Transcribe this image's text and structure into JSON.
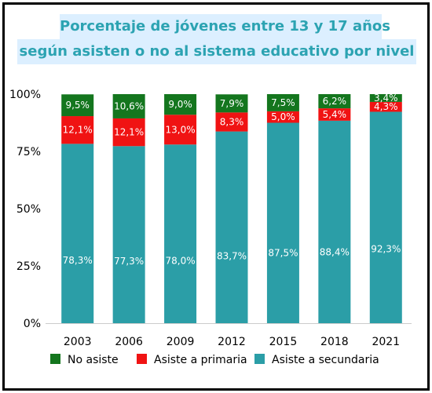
{
  "title": {
    "line1": "Porcentaje de jóvenes entre 13 y 17 años",
    "line2": "según asisten o no al  sistema educativo por nivel"
  },
  "chart_data": {
    "type": "bar",
    "stacked": true,
    "categories": [
      "2003",
      "2006",
      "2009",
      "2012",
      "2015",
      "2018",
      "2021"
    ],
    "series": [
      {
        "name": "No asiste",
        "color": "#14761e",
        "values": [
          9.5,
          10.6,
          9.0,
          7.9,
          7.5,
          6.2,
          3.4
        ],
        "labels": [
          "9,5%",
          "10,6%",
          "9,0%",
          "7,9%",
          "7,5%",
          "6,2%",
          "3,4%"
        ]
      },
      {
        "name": "Asiste a primaria",
        "color": "#f01313",
        "values": [
          12.1,
          12.1,
          13.0,
          8.3,
          5.0,
          5.4,
          4.3
        ],
        "labels": [
          "12,1%",
          "12,1%",
          "13,0%",
          "8,3%",
          "5,0%",
          "5,4%",
          "4,3%"
        ]
      },
      {
        "name": "Asiste a secundaria",
        "color": "#2b9ea7",
        "values": [
          78.3,
          77.3,
          78.0,
          83.7,
          87.5,
          88.4,
          92.3
        ],
        "labels": [
          "78,3%",
          "77,3%",
          "78,0%",
          "83,7%",
          "87,5%",
          "88,4%",
          "92,3%"
        ]
      }
    ],
    "ylim": [
      0,
      100
    ],
    "yticks": [
      0,
      25,
      50,
      75,
      100
    ],
    "ytick_labels": [
      "0%",
      "25%",
      "50%",
      "75%",
      "100%"
    ],
    "grid": false,
    "legend_position": "bottom"
  }
}
